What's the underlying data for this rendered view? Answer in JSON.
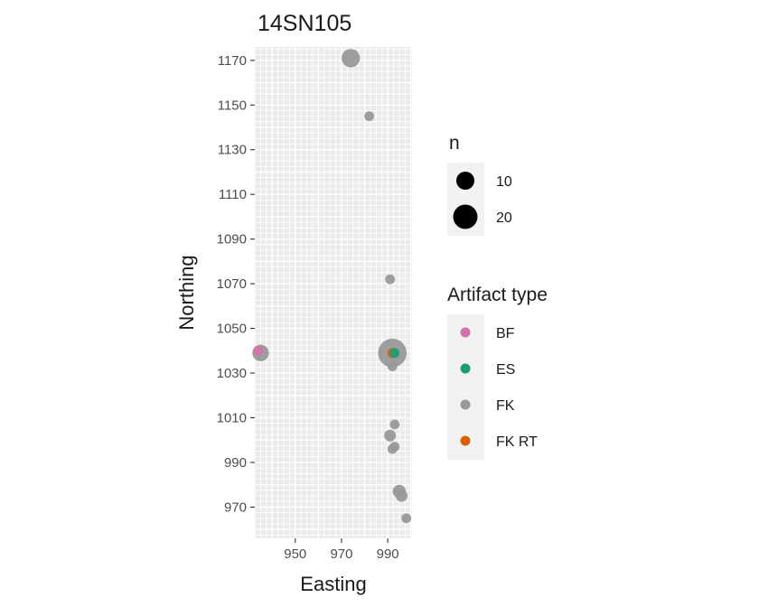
{
  "chart_data": {
    "type": "scatter",
    "title": "14SN105",
    "xlabel": "Easting",
    "ylabel": "Northing",
    "xlim": [
      932.5,
      1000.5
    ],
    "ylim": [
      956,
      1176
    ],
    "x_ticks": [
      950,
      970,
      990
    ],
    "y_ticks": [
      970,
      990,
      1010,
      1030,
      1050,
      1070,
      1090,
      1110,
      1130,
      1150,
      1170
    ],
    "grid": true,
    "size_legend": {
      "title": "n",
      "entries": [
        {
          "label": "10",
          "value": 10
        },
        {
          "label": "20",
          "value": 20
        }
      ]
    },
    "color_legend": {
      "title": "Artifact type",
      "entries": [
        {
          "label": "BF",
          "color": "#d473ab"
        },
        {
          "label": "ES",
          "color": "#1b9e77"
        },
        {
          "label": "FK",
          "color": "#999999"
        },
        {
          "label": "FK RT",
          "color": "#d95f02"
        }
      ]
    },
    "series": [
      {
        "name": "FK",
        "color": "#999999",
        "points": [
          {
            "x": 974,
            "y": 1171,
            "n": 8
          },
          {
            "x": 982,
            "y": 1145,
            "n": 1
          },
          {
            "x": 991,
            "y": 1072,
            "n": 1
          },
          {
            "x": 935,
            "y": 1039,
            "n": 6
          },
          {
            "x": 992,
            "y": 1039,
            "n": 25
          },
          {
            "x": 992,
            "y": 1033,
            "n": 1
          },
          {
            "x": 993,
            "y": 1007,
            "n": 1
          },
          {
            "x": 991,
            "y": 1002,
            "n": 2
          },
          {
            "x": 993,
            "y": 997,
            "n": 1
          },
          {
            "x": 992,
            "y": 996,
            "n": 1
          },
          {
            "x": 995,
            "y": 977,
            "n": 3
          },
          {
            "x": 996,
            "y": 975,
            "n": 2
          },
          {
            "x": 998,
            "y": 965,
            "n": 1
          }
        ]
      },
      {
        "name": "BF",
        "color": "#d473ab",
        "points": [
          {
            "x": 934,
            "y": 1040,
            "n": 1
          }
        ]
      },
      {
        "name": "FK RT",
        "color": "#d95f02",
        "points": [
          {
            "x": 992,
            "y": 1039,
            "n": 1
          }
        ]
      },
      {
        "name": "ES",
        "color": "#1b9e77",
        "points": [
          {
            "x": 993,
            "y": 1039,
            "n": 1
          }
        ]
      }
    ]
  }
}
